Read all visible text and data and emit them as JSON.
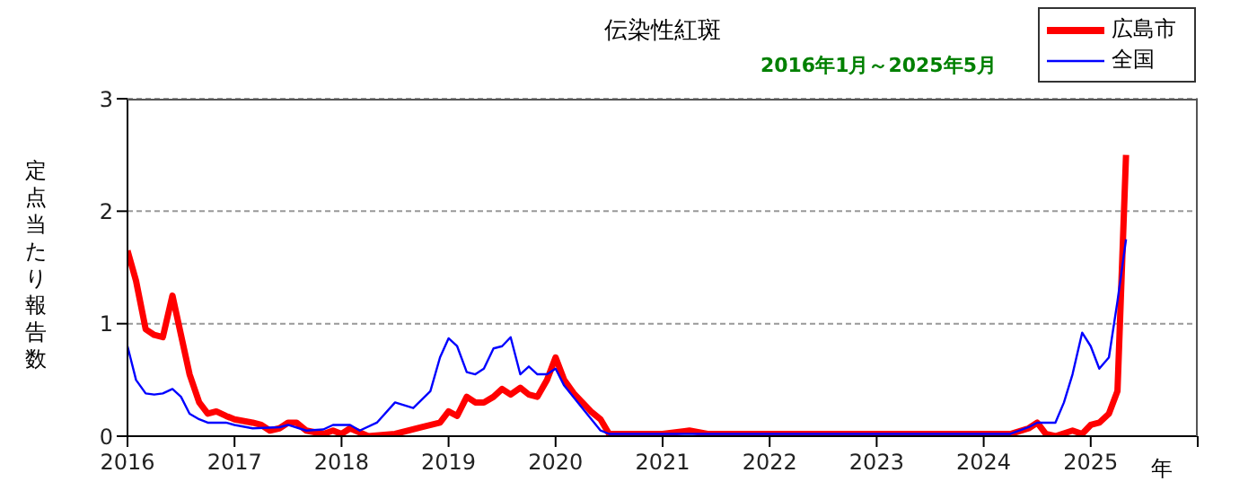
{
  "chart_data": {
    "type": "line",
    "title": "伝染性紅斑",
    "subtitle": "2016年1月～2025年5月",
    "xlabel": "年",
    "ylabel": "定点当たり報告数",
    "xlim": [
      2016,
      2026
    ],
    "xticks": [
      2016,
      2017,
      2018,
      2019,
      2020,
      2021,
      2022,
      2023,
      2024,
      2025,
      {
        "value": 2026,
        "label": null
      }
    ],
    "ylim": [
      0,
      3
    ],
    "yticks": [
      0,
      1,
      2,
      3
    ],
    "grid": "y",
    "legend": "top right",
    "marker": "none",
    "line_style": "solid",
    "series": [
      {
        "name": "広島市",
        "color": "#ff0000",
        "x": [
          2016,
          2016.08,
          2016.17,
          2016.25,
          2016.33,
          2016.42,
          2016.5,
          2016.58,
          2016.67,
          2016.75,
          2016.83,
          2016.92,
          2017,
          2017.17,
          2017.25,
          2017.33,
          2017.42,
          2017.5,
          2017.58,
          2017.67,
          2017.83,
          2017.92,
          2018,
          2018.08,
          2018.25,
          2018.5,
          2018.75,
          2018.92,
          2019,
          2019.08,
          2019.17,
          2019.25,
          2019.33,
          2019.42,
          2019.5,
          2019.58,
          2019.67,
          2019.75,
          2019.83,
          2019.92,
          2020,
          2020.08,
          2020.17,
          2020.25,
          2020.33,
          2020.42,
          2020.5,
          2020.75,
          2021.0,
          2021.25,
          2021.42,
          2021.75,
          2022.0,
          2022.5,
          2022.75,
          2023.0,
          2023.25,
          2023.5,
          2023.75,
          2024.0,
          2024.25,
          2024.42,
          2024.5,
          2024.58,
          2024.67,
          2024.83,
          2024.92,
          2025,
          2025.08,
          2025.17,
          2025.25,
          2025.33
        ],
        "values": [
          1.65,
          1.38,
          0.95,
          0.9,
          0.88,
          1.25,
          0.9,
          0.55,
          0.3,
          0.2,
          0.22,
          0.18,
          0.15,
          0.12,
          0.1,
          0.05,
          0.07,
          0.12,
          0.12,
          0.05,
          0.02,
          0.05,
          0.02,
          0.07,
          0,
          0.02,
          0.08,
          0.12,
          0.22,
          0.18,
          0.35,
          0.3,
          0.3,
          0.35,
          0.42,
          0.37,
          0.43,
          0.37,
          0.35,
          0.5,
          0.7,
          0.5,
          0.38,
          0.3,
          0.22,
          0.15,
          0.02,
          0.02,
          0.02,
          0.05,
          0.02,
          0.02,
          0.02,
          0.02,
          0.02,
          0.02,
          0.02,
          0.02,
          0.02,
          0.02,
          0.02,
          0.07,
          0.12,
          0.02,
          0,
          0.05,
          0.02,
          0.1,
          0.12,
          0.2,
          0.4,
          2.5
        ]
      },
      {
        "name": "全国",
        "color": "#0000ff",
        "x": [
          2016,
          2016.08,
          2016.17,
          2016.25,
          2016.33,
          2016.42,
          2016.5,
          2016.58,
          2016.67,
          2016.75,
          2016.92,
          2017,
          2017.17,
          2017.42,
          2017.5,
          2017.67,
          2017.83,
          2017.92,
          2018.08,
          2018.17,
          2018.33,
          2018.5,
          2018.67,
          2018.83,
          2018.92,
          2019,
          2019.08,
          2019.17,
          2019.25,
          2019.33,
          2019.42,
          2019.5,
          2019.58,
          2019.67,
          2019.75,
          2019.83,
          2019.92,
          2020,
          2020.08,
          2020.25,
          2020.42,
          2020.5,
          2021.0,
          2022.0,
          2023.0,
          2024.0,
          2024.25,
          2024.42,
          2024.5,
          2024.67,
          2024.75,
          2024.83,
          2024.92,
          2025,
          2025.08,
          2025.17,
          2025.25,
          2025.33
        ],
        "values": [
          0.8,
          0.5,
          0.38,
          0.37,
          0.38,
          0.42,
          0.35,
          0.2,
          0.15,
          0.12,
          0.12,
          0.1,
          0.07,
          0.08,
          0.1,
          0.05,
          0.06,
          0.1,
          0.1,
          0.05,
          0.12,
          0.3,
          0.25,
          0.4,
          0.7,
          0.87,
          0.8,
          0.57,
          0.55,
          0.6,
          0.78,
          0.8,
          0.88,
          0.55,
          0.62,
          0.55,
          0.55,
          0.6,
          0.45,
          0.25,
          0.05,
          0.02,
          0.02,
          0.02,
          0.02,
          0.02,
          0.02,
          0.08,
          0.12,
          0.12,
          0.3,
          0.55,
          0.92,
          0.8,
          0.6,
          0.7,
          1.2,
          1.75
        ]
      }
    ]
  }
}
